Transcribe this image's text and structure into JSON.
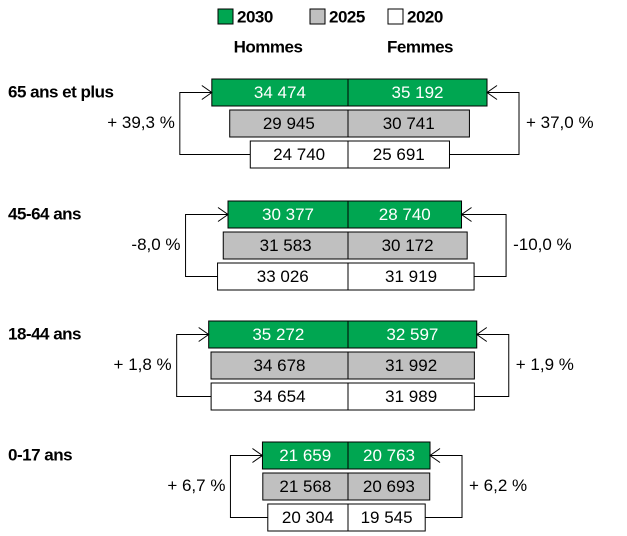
{
  "chart_data": {
    "type": "butterfly",
    "sides": [
      "Hommes",
      "Femmes"
    ],
    "categories": [
      "65 ans et plus",
      "45-64 ans",
      "18-44 ans",
      "0-17 ans"
    ],
    "series": [
      {
        "name": "2030",
        "color": "#00a651",
        "values": [
          [
            34474,
            35192
          ],
          [
            30377,
            28740
          ],
          [
            35272,
            32597
          ],
          [
            21659,
            20763
          ]
        ],
        "value_labels": [
          [
            "34 474",
            "35 192"
          ],
          [
            "30 377",
            "28 740"
          ],
          [
            "35 272",
            "32 597"
          ],
          [
            "21 659",
            "20 763"
          ]
        ]
      },
      {
        "name": "2025",
        "color": "#c0c0c0",
        "values": [
          [
            29945,
            30741
          ],
          [
            31583,
            30172
          ],
          [
            34678,
            31992
          ],
          [
            21568,
            20693
          ]
        ],
        "value_labels": [
          [
            "29 945",
            "30 741"
          ],
          [
            "31 583",
            "30 172"
          ],
          [
            "34 678",
            "31 992"
          ],
          [
            "21 568",
            "20 693"
          ]
        ]
      },
      {
        "name": "2020",
        "color": "#ffffff",
        "values": [
          [
            24740,
            25691
          ],
          [
            33026,
            31919
          ],
          [
            34654,
            31989
          ],
          [
            20304,
            19545
          ]
        ],
        "value_labels": [
          [
            "24 740",
            "25 691"
          ],
          [
            "33 026",
            "31 919"
          ],
          [
            "34 654",
            "31 989"
          ],
          [
            "20 304",
            "19 545"
          ]
        ]
      }
    ],
    "changes": [
      [
        {
          "value": 39.3,
          "label": "+ 39,3 %"
        },
        {
          "value": 37.0,
          "label": "+ 37,0 %"
        }
      ],
      [
        {
          "value": -8.0,
          "label": "-8,0 %"
        },
        {
          "value": -10.0,
          "label": "-10,0 %"
        }
      ],
      [
        {
          "value": 1.8,
          "label": "+ 1,8 %"
        },
        {
          "value": 1.9,
          "label": "+ 1,9 %"
        }
      ],
      [
        {
          "value": 6.7,
          "label": "+ 6,7 %"
        },
        {
          "value": 6.2,
          "label": "+ 6,2 %"
        }
      ]
    ]
  }
}
